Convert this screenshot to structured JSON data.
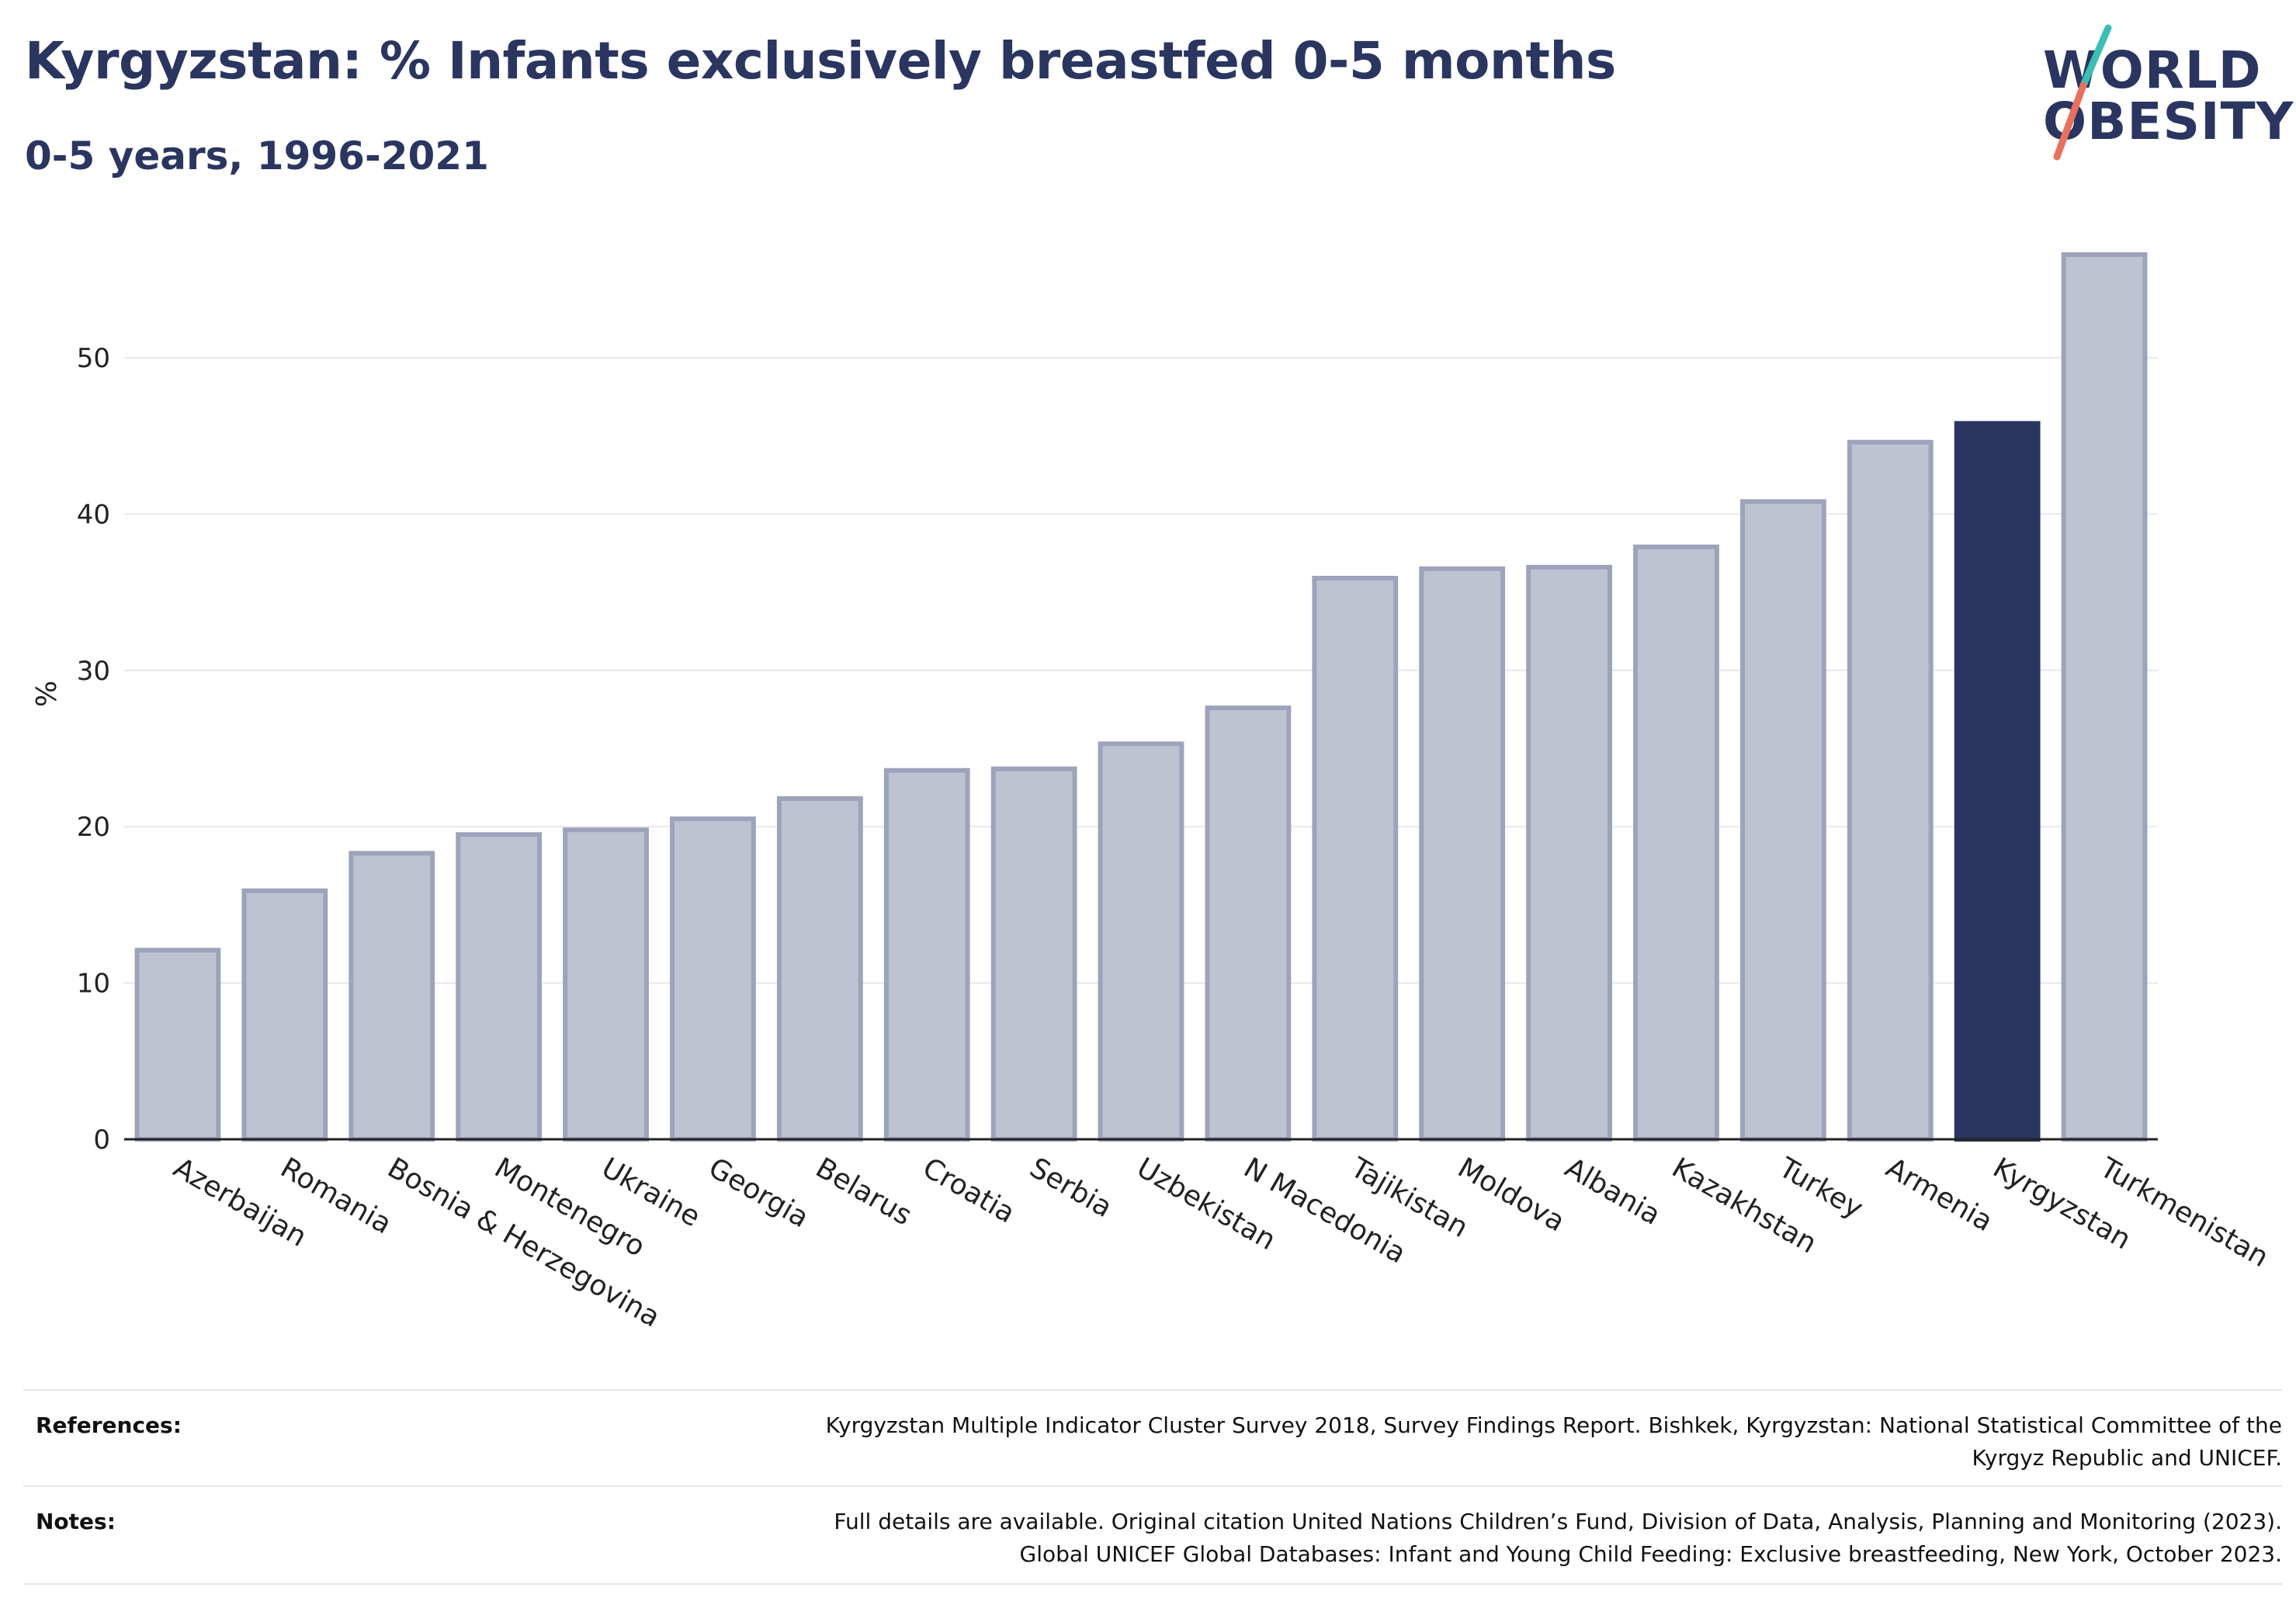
{
  "header": {
    "title": "Kyrgyzstan: % Infants exclusively breastfed 0-5 months",
    "subtitle": "0-5 years, 1996-2021"
  },
  "logo": {
    "line1": "WORLD",
    "line2": "OBESITY",
    "accent_teal": "#3bbfb4",
    "accent_red": "#e8705f"
  },
  "colors": {
    "highlight": "#2a3560",
    "other_fill": "#bfc3d1",
    "other_stroke": "#9da3bb",
    "text": "#2a3560"
  },
  "chart_data": {
    "type": "bar",
    "ylabel": "%",
    "ylim": [
      0,
      57
    ],
    "yticks": [
      0,
      10,
      20,
      30,
      40,
      50
    ],
    "grid": true,
    "highlight": "Kyrgyzstan",
    "categories": [
      "Azerbaijan",
      "Romania",
      "Bosnia & Herzegovina",
      "Montenegro",
      "Ukraine",
      "Georgia",
      "Belarus",
      "Croatia",
      "Serbia",
      "Uzbekistan",
      "N Macedonia",
      "Tajikistan",
      "Moldova",
      "Albania",
      "Kazakhstan",
      "Turkey",
      "Armenia",
      "Kyrgyzstan",
      "Turkmenistan"
    ],
    "values": [
      12.1,
      15.9,
      18.3,
      19.5,
      19.8,
      20.5,
      21.8,
      23.6,
      23.7,
      25.3,
      27.6,
      35.9,
      36.5,
      36.6,
      37.9,
      40.8,
      44.6,
      45.8,
      56.6
    ]
  },
  "footer": {
    "references_label": "References:",
    "references_line1": "Kyrgyzstan Multiple Indicator Cluster Survey 2018, Survey Findings Report. Bishkek, Kyrgyzstan: National Statistical Committee of the",
    "references_line2": "Kyrgyz Republic and UNICEF.",
    "notes_label": "Notes:",
    "notes_line1": "Full details are available. Original citation United Nations Children’s Fund, Division of Data, Analysis, Planning and Monitoring (2023).",
    "notes_line2": "Global UNICEF Global Databases: Infant and Young Child Feeding: Exclusive breastfeeding, New York, October 2023."
  }
}
